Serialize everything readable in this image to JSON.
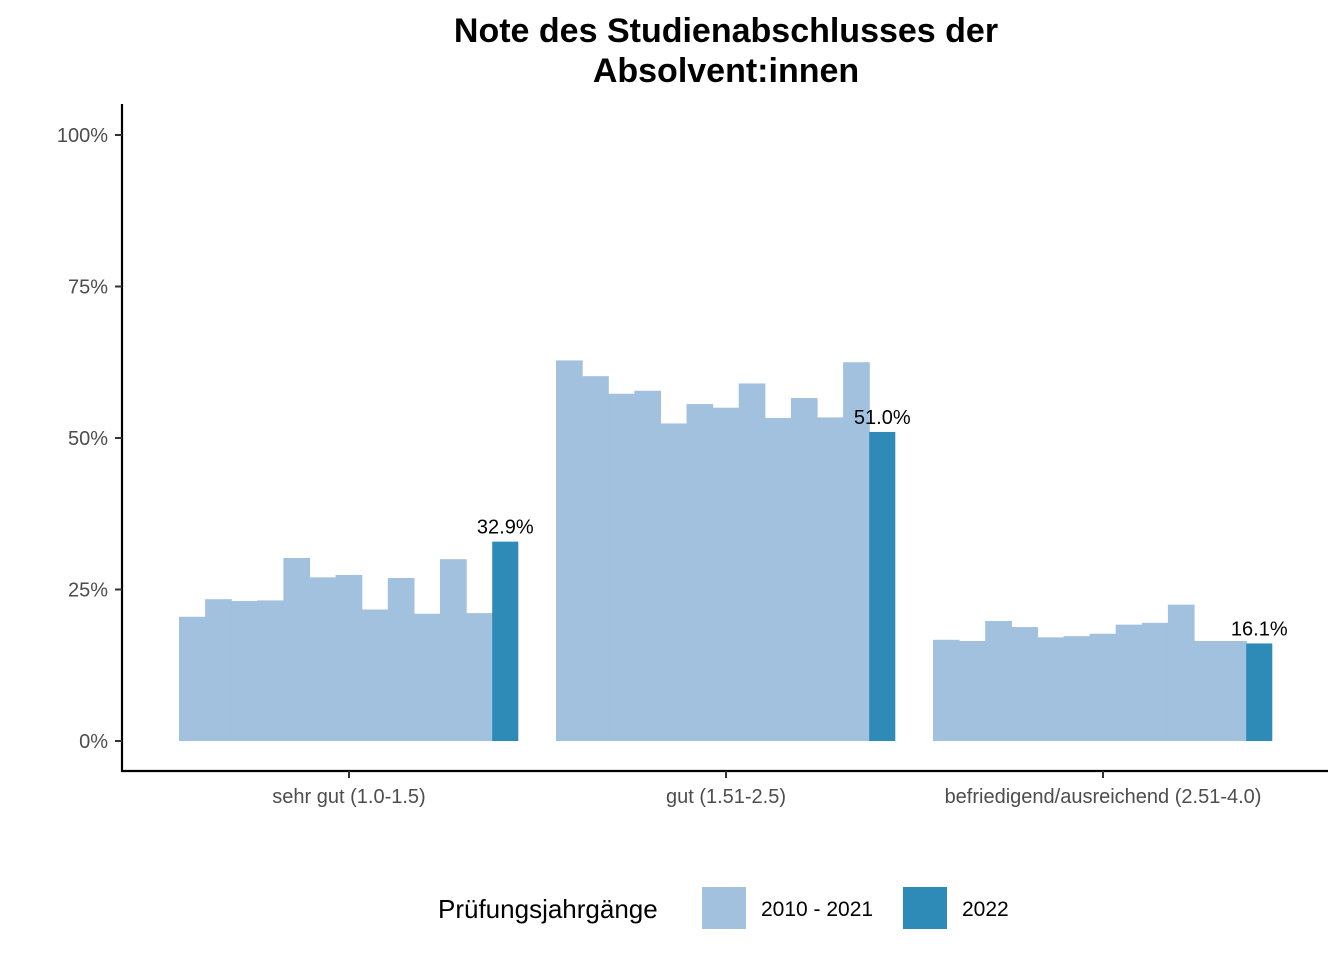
{
  "chart_data": {
    "type": "bar",
    "title_lines": [
      "Note des Studienabschlusses der",
      "Absolvent:innen"
    ],
    "xlabel": "",
    "ylabel": "",
    "ylim": [
      0,
      1
    ],
    "y_ticks": [
      0,
      0.25,
      0.5,
      0.75,
      1.0
    ],
    "y_tick_labels": [
      "0%",
      "25%",
      "50%",
      "75%",
      "100%"
    ],
    "grid": false,
    "categories": [
      "sehr gut (1.0-1.5)",
      "gut (1.51-2.5)",
      "befriedigend/ausreichend (2.51-4.0)"
    ],
    "series": [
      {
        "name": "2010 - 2021",
        "color": "#a1c1de",
        "values": [
          [
            0.205,
            0.234,
            0.231,
            0.232,
            0.302,
            0.27,
            0.274,
            0.217,
            0.269,
            0.21,
            0.3,
            0.211
          ],
          [
            0.628,
            0.602,
            0.573,
            0.578,
            0.524,
            0.556,
            0.55,
            0.59,
            0.533,
            0.566,
            0.534,
            0.625
          ],
          [
            0.167,
            0.165,
            0.198,
            0.188,
            0.171,
            0.173,
            0.177,
            0.192,
            0.195,
            0.225,
            0.165,
            0.165
          ]
        ]
      },
      {
        "name": "2022",
        "color": "#2e8bb8",
        "values": [
          0.329,
          0.51,
          0.161
        ],
        "labels": [
          "32.9%",
          "51.0%",
          "16.1%"
        ]
      }
    ],
    "legend": {
      "title": "Prüfungsjahrgänge",
      "position": "bottom",
      "items": [
        "2010 - 2021",
        "2022"
      ]
    }
  }
}
